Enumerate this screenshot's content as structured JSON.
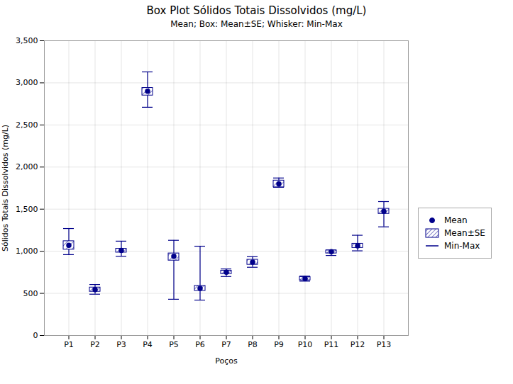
{
  "chart_data": {
    "type": "box",
    "title": "Box Plot Sólidos Totais Dissolvidos (mg/L)",
    "subtitle": "Mean; Box: Mean±SE; Whisker: Min-Max",
    "xlabel": "Poços",
    "ylabel": "Sólidos Totais Dissolvidos (mg/L)",
    "categories": [
      "P1",
      "P2",
      "P3",
      "P4",
      "P5",
      "P6",
      "P7",
      "P8",
      "P9",
      "P10",
      "P11",
      "P12",
      "P13"
    ],
    "series": [
      {
        "name": "Mean",
        "type": "dot",
        "marker": "circle",
        "color": "#00008B",
        "values": [
          1070,
          545,
          1010,
          2900,
          940,
          560,
          750,
          870,
          1800,
          675,
          995,
          1065,
          1475
        ]
      },
      {
        "name": "Mean±SE",
        "type": "box",
        "color": "#00008B",
        "low": [
          1020,
          520,
          985,
          2850,
          890,
          530,
          730,
          840,
          1760,
          655,
          975,
          1040,
          1445
        ],
        "high": [
          1120,
          570,
          1030,
          2940,
          975,
          590,
          770,
          900,
          1840,
          695,
          1010,
          1090,
          1505
        ]
      },
      {
        "name": "Min-Max",
        "type": "whisker",
        "color": "#00008B",
        "low": [
          960,
          490,
          940,
          2710,
          430,
          420,
          700,
          810,
          1760,
          645,
          950,
          1005,
          1290
        ],
        "high": [
          1270,
          605,
          1120,
          3130,
          1130,
          1060,
          790,
          935,
          1870,
          705,
          1015,
          1190,
          1590
        ]
      }
    ],
    "ylim": [
      0,
      3500
    ],
    "yticks": [
      0,
      500,
      1000,
      1500,
      2000,
      2500,
      3000,
      3500
    ],
    "grid": true,
    "legend": "right"
  }
}
